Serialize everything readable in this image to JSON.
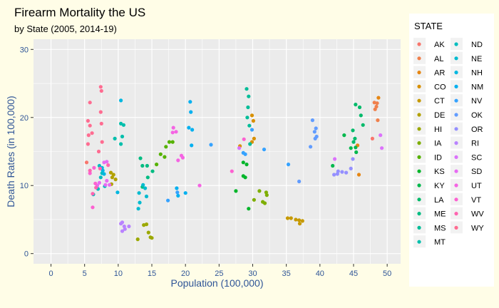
{
  "chart_data": {
    "type": "scatter",
    "title": "Firearm Mortality the US",
    "subtitle": "by State (2005, 2014-19)",
    "xlabel": "Population (100,000)",
    "ylabel": "Death Rates (in 100,000)",
    "xlim": [
      -2.6,
      52
    ],
    "ylim": [
      -1.5,
      31.5
    ],
    "x_ticks": [
      0,
      5,
      10,
      15,
      20,
      25,
      30,
      35,
      40,
      45,
      50
    ],
    "y_ticks": [
      0,
      10,
      20,
      30
    ],
    "grid": true,
    "legend_position": "right",
    "legend_title": "STATE",
    "series": [
      {
        "name": "AK",
        "color": "#F8766D",
        "points": [
          [
            5.3,
            13.4
          ],
          [
            47.8,
            16.9
          ]
        ]
      },
      {
        "name": "AL",
        "color": "#F0804C",
        "points": [
          [
            48.1,
            22.2
          ],
          [
            48.4,
            21.6
          ],
          [
            48.5,
            22.1
          ],
          [
            48.2,
            21.2
          ],
          [
            48.6,
            19.6
          ]
        ]
      },
      {
        "name": "AR",
        "color": "#E68613",
        "points": [
          [
            48.7,
            22.9
          ],
          [
            45.8,
            11.6
          ],
          [
            45.6,
            15.9
          ]
        ]
      },
      {
        "name": "CO",
        "color": "#D89000",
        "points": [
          [
            29.9,
            20.3
          ],
          [
            30.1,
            19.5
          ],
          [
            30.2,
            16.9
          ],
          [
            29.9,
            16.4
          ],
          [
            28.1,
            15.8
          ]
        ]
      },
      {
        "name": "CT",
        "color": "#C69900",
        "points": [
          [
            35.2,
            5.2
          ],
          [
            35.7,
            5.2
          ],
          [
            36.4,
            5.0
          ],
          [
            36.9,
            4.9
          ],
          [
            37.4,
            4.8
          ],
          [
            37.0,
            4.4
          ]
        ]
      },
      {
        "name": "DE",
        "color": "#B2A100",
        "points": [
          [
            8.9,
            11.9
          ],
          [
            9.1,
            11.2
          ],
          [
            9.6,
            10.9
          ],
          [
            9.0,
            10.2
          ],
          [
            9.3,
            11.6
          ]
        ]
      },
      {
        "name": "HI",
        "color": "#9BA800",
        "points": [
          [
            13.8,
            4.2
          ],
          [
            14.2,
            4.3
          ],
          [
            14.5,
            3.1
          ],
          [
            14.8,
            2.4
          ],
          [
            15.0,
            2.3
          ],
          [
            12.9,
            2.1
          ]
        ]
      },
      {
        "name": "IA",
        "color": "#7EAE00",
        "points": [
          [
            30.2,
            7.9
          ],
          [
            31.0,
            9.2
          ],
          [
            31.5,
            7.6
          ],
          [
            32.0,
            9.0
          ],
          [
            32.1,
            8.6
          ],
          [
            31.8,
            7.4
          ]
        ]
      },
      {
        "name": "ID",
        "color": "#55B200",
        "points": [
          [
            16.3,
            14.6
          ],
          [
            17.1,
            15.7
          ],
          [
            17.6,
            16.4
          ],
          [
            18.1,
            16.4
          ],
          [
            16.9,
            14.2
          ],
          [
            15.7,
            13.1
          ]
        ]
      },
      {
        "name": "KS",
        "color": "#00B52A",
        "points": [
          [
            27.5,
            9.2
          ],
          [
            28.6,
            11.4
          ],
          [
            28.9,
            11.2
          ],
          [
            29.1,
            13.1
          ],
          [
            29.4,
            6.6
          ],
          [
            28.6,
            13.4
          ]
        ]
      },
      {
        "name": "KY",
        "color": "#00B84D",
        "points": [
          [
            43.6,
            17.4
          ],
          [
            44.6,
            15.5
          ],
          [
            45.3,
            15.6
          ],
          [
            45.4,
            14.9
          ],
          [
            41.9,
            12.9
          ]
        ]
      },
      {
        "name": "LA",
        "color": "#00BA6A",
        "points": [
          [
            45.3,
            21.9
          ],
          [
            45.9,
            21.5
          ],
          [
            46.1,
            20.3
          ],
          [
            44.9,
            18.1
          ],
          [
            46.4,
            18.9
          ],
          [
            45.2,
            16.9
          ],
          [
            45.0,
            16.4
          ]
        ]
      },
      {
        "name": "ME",
        "color": "#00BC82",
        "points": [
          [
            13.3,
            14.0
          ],
          [
            13.6,
            12.9
          ],
          [
            14.3,
            12.9
          ],
          [
            15.1,
            12.1
          ],
          [
            14.4,
            11.2
          ],
          [
            13.6,
            9.8
          ]
        ]
      },
      {
        "name": "MS",
        "color": "#00BD98",
        "points": [
          [
            29.1,
            24.2
          ],
          [
            29.4,
            23.1
          ],
          [
            29.3,
            21.5
          ],
          [
            29.2,
            20.0
          ],
          [
            29.5,
            18.8
          ],
          [
            29.6,
            16.1
          ]
        ]
      },
      {
        "name": "MT",
        "color": "#00BFAC",
        "points": [
          [
            10.4,
            19.1
          ],
          [
            10.8,
            18.9
          ],
          [
            10.6,
            17.2
          ],
          [
            9.5,
            16.9
          ],
          [
            10.4,
            16.1
          ]
        ]
      },
      {
        "name": "ND",
        "color": "#00BDBF",
        "points": [
          [
            7.2,
            12.9
          ],
          [
            7.6,
            11.8
          ],
          [
            7.4,
            11.2
          ],
          [
            8.0,
            9.9
          ],
          [
            7.0,
            9.5
          ],
          [
            6.3,
            8.7
          ]
        ]
      },
      {
        "name": "NE",
        "color": "#00BBD0",
        "points": [
          [
            13.7,
            10.1
          ],
          [
            14.0,
            9.6
          ],
          [
            14.2,
            8.4
          ],
          [
            13.1,
            8.9
          ],
          [
            13.2,
            7.5
          ],
          [
            13.0,
            6.6
          ]
        ]
      },
      {
        "name": "NH",
        "color": "#00B7E0",
        "points": [
          [
            10.4,
            22.5
          ],
          [
            7.6,
            12.6
          ],
          [
            7.7,
            12.2
          ],
          [
            7.9,
            11.7
          ],
          [
            9.9,
            9.0
          ]
        ]
      },
      {
        "name": "NM",
        "color": "#00B0F0",
        "points": [
          [
            20.7,
            22.3
          ],
          [
            20.8,
            20.8
          ],
          [
            20.5,
            18.5
          ],
          [
            21.0,
            18.2
          ],
          [
            20.9,
            15.9
          ],
          [
            18.7,
            9.6
          ],
          [
            18.9,
            8.5
          ],
          [
            20.0,
            8.9
          ]
        ]
      },
      {
        "name": "NV",
        "color": "#35A2FF",
        "points": [
          [
            29.9,
            18.2
          ],
          [
            23.8,
            16.0
          ],
          [
            28.9,
            14.6
          ],
          [
            31.7,
            15.3
          ],
          [
            28.6,
            14.8
          ],
          [
            35.3,
            13.1
          ],
          [
            17.4,
            7.8
          ],
          [
            18.8,
            9.0
          ]
        ]
      },
      {
        "name": "OK",
        "color": "#619CFF",
        "points": [
          [
            38.9,
            19.6
          ],
          [
            39.4,
            18.4
          ],
          [
            39.2,
            17.9
          ],
          [
            39.5,
            17.2
          ],
          [
            38.6,
            15.7
          ],
          [
            39.3,
            16.9
          ],
          [
            36.9,
            10.6
          ]
        ]
      },
      {
        "name": "OR",
        "color": "#9590FF",
        "points": [
          [
            42.7,
            12.1
          ],
          [
            43.3,
            12.0
          ],
          [
            44.6,
            12.5
          ],
          [
            44.9,
            13.9
          ],
          [
            43.9,
            11.9
          ],
          [
            42.1,
            11.6
          ],
          [
            42.6,
            11.7
          ]
        ]
      },
      {
        "name": "RI",
        "color": "#B983FF",
        "points": [
          [
            10.6,
            4.6
          ],
          [
            10.9,
            4.0
          ],
          [
            11.0,
            3.6
          ],
          [
            10.6,
            3.3
          ],
          [
            10.4,
            4.4
          ],
          [
            11.6,
            4.0
          ]
        ]
      },
      {
        "name": "SC",
        "color": "#DB72FB",
        "points": [
          [
            49.0,
            17.4
          ],
          [
            49.2,
            15.5
          ],
          [
            42.2,
            13.9
          ],
          [
            28.0,
            15.5
          ]
        ]
      },
      {
        "name": "SD",
        "color": "#E76BF3",
        "points": [
          [
            7.9,
            13.4
          ],
          [
            8.3,
            13.5
          ],
          [
            7.2,
            10.4
          ],
          [
            8.1,
            10.1
          ],
          [
            6.9,
            10.0
          ],
          [
            8.7,
            10.1
          ],
          [
            8.3,
            10.7
          ]
        ]
      },
      {
        "name": "UT",
        "color": "#F564E3",
        "points": [
          [
            18.2,
            18.5
          ],
          [
            18.6,
            17.9
          ],
          [
            18.1,
            17.8
          ],
          [
            19.4,
            14.4
          ],
          [
            18.9,
            13.7
          ],
          [
            22.1,
            10.0
          ],
          [
            19.6,
            14.1
          ]
        ]
      },
      {
        "name": "VT",
        "color": "#FD61D1",
        "points": [
          [
            6.4,
            12.6
          ],
          [
            6.2,
            6.8
          ],
          [
            6.6,
            10.3
          ],
          [
            5.8,
            11.8
          ],
          [
            26.9,
            12.1
          ],
          [
            28.7,
            16.8
          ]
        ]
      },
      {
        "name": "WV",
        "color": "#FF64B0",
        "points": [
          [
            8.5,
            13.0
          ],
          [
            7.3,
            12.5
          ],
          [
            6.2,
            8.8
          ],
          [
            6.7,
            9.7
          ],
          [
            5.8,
            12.2
          ]
        ]
      },
      {
        "name": "WY",
        "color": "#FF6C91",
        "points": [
          [
            7.4,
            24.5
          ],
          [
            7.5,
            23.9
          ],
          [
            5.8,
            22.2
          ],
          [
            7.4,
            20.8
          ],
          [
            5.5,
            19.5
          ],
          [
            5.8,
            18.8
          ],
          [
            7.5,
            19.1
          ],
          [
            6.1,
            17.7
          ],
          [
            5.6,
            17.4
          ],
          [
            7.6,
            16.4
          ],
          [
            7.1,
            15.0
          ],
          [
            5.5,
            16.1
          ]
        ]
      }
    ]
  }
}
